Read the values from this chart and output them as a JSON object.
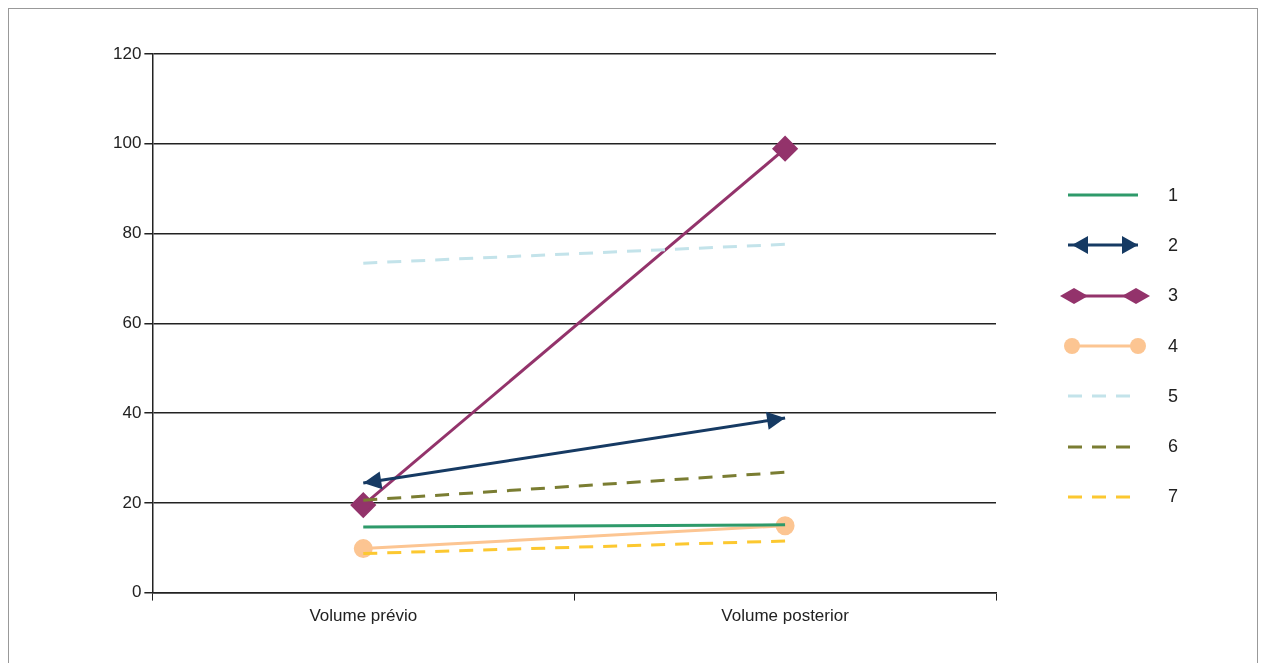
{
  "chart_data": {
    "type": "line",
    "categories": [
      "Volume prévio",
      "Volume posterior"
    ],
    "series": [
      {
        "name": "1",
        "color": "#2e9a6a",
        "values": [
          14.6,
          15.1
        ],
        "marker": "none",
        "line_style": "solid"
      },
      {
        "name": "2",
        "color": "#163a63",
        "values": [
          24.4,
          38.9
        ],
        "marker": "triangle",
        "line_style": "solid"
      },
      {
        "name": "3",
        "color": "#93336b",
        "values": [
          19.5,
          98.9
        ],
        "marker": "diamond",
        "line_style": "solid"
      },
      {
        "name": "4",
        "color": "#fcc592",
        "values": [
          9.8,
          14.9
        ],
        "marker": "circle",
        "line_style": "solid"
      },
      {
        "name": "5",
        "color": "#c3e3ea",
        "values": [
          73.4,
          77.6
        ],
        "marker": "none",
        "line_style": "dashed"
      },
      {
        "name": "6",
        "color": "#7a7d32",
        "values": [
          20.6,
          26.8
        ],
        "marker": "none",
        "line_style": "dashed"
      },
      {
        "name": "7",
        "color": "#fcc830",
        "values": [
          8.7,
          11.5
        ],
        "marker": "none",
        "line_style": "dashed"
      }
    ],
    "ylim": [
      0,
      120
    ],
    "yticks": [
      0,
      20,
      40,
      60,
      80,
      100,
      120
    ],
    "grid": "y",
    "legend": "right"
  }
}
